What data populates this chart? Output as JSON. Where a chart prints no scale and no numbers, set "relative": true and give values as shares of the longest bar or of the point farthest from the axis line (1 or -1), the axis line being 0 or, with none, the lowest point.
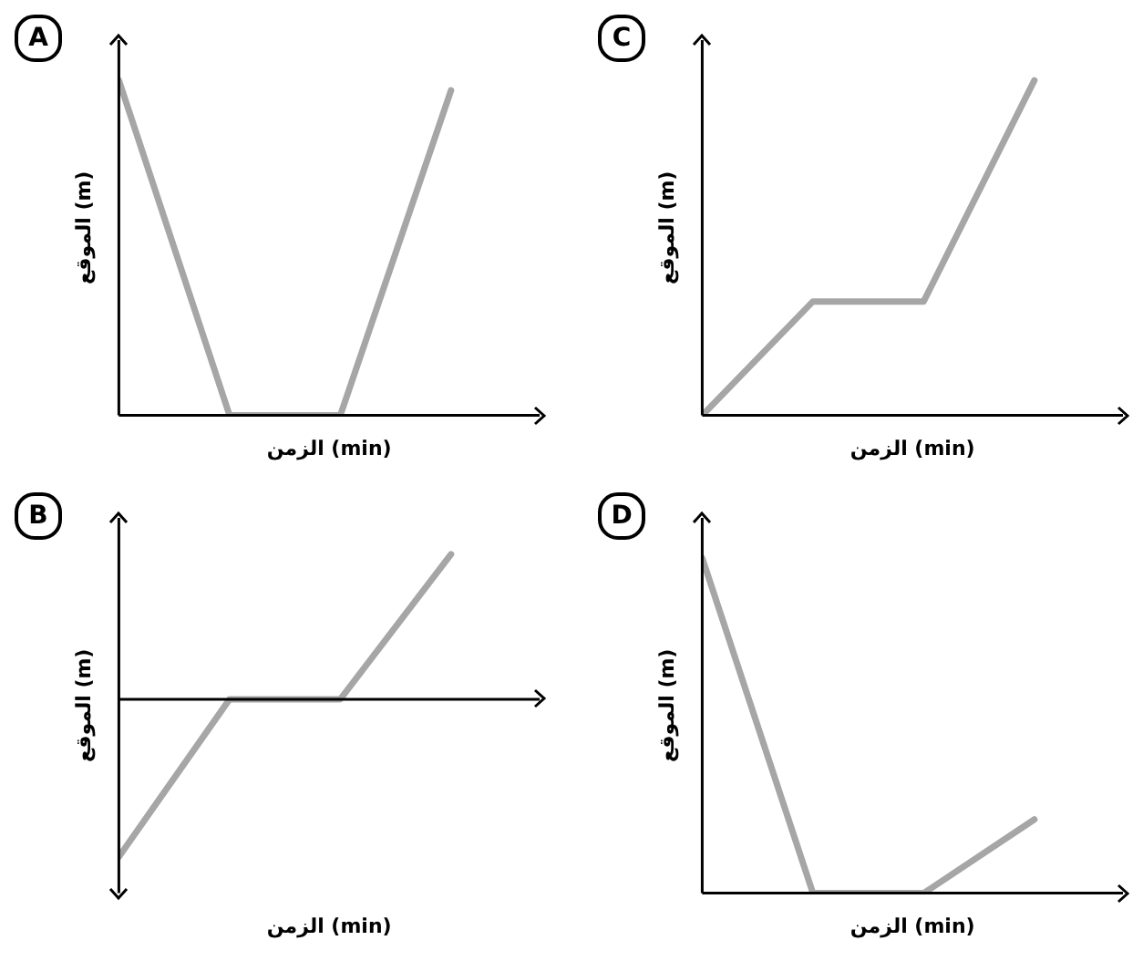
{
  "chart_data": [
    {
      "type": "line",
      "title": "A",
      "xlabel": "الزمن (min)",
      "ylabel": "الموقع (m)",
      "categories": [
        null,
        null,
        null,
        null
      ],
      "values": [
        1,
        0,
        0,
        0.97
      ],
      "color": "#a6a6a6",
      "relative": true,
      "marker": "none",
      "line_style": "solid"
    },
    {
      "type": "line",
      "title": "C",
      "xlabel": "الزمن (min)",
      "ylabel": "الموقع (m)",
      "categories": [
        null,
        null,
        null,
        null
      ],
      "values": [
        0,
        0.34,
        0.34,
        1
      ],
      "color": "#a6a6a6",
      "relative": true,
      "marker": "none",
      "line_style": "solid"
    },
    {
      "type": "line",
      "title": "B",
      "xlabel": "الزمن (min)",
      "ylabel": "الموقع (m)",
      "categories": [
        null,
        null,
        null,
        null
      ],
      "values": [
        -1,
        0,
        0,
        0.92
      ],
      "color": "#a6a6a6",
      "relative": true,
      "marker": "none",
      "line_style": "solid"
    },
    {
      "type": "line",
      "title": "D",
      "xlabel": "الزمن (min)",
      "ylabel": "الموقع (m)",
      "categories": [
        null,
        null,
        null,
        null
      ],
      "values": [
        1,
        0,
        0,
        0.22
      ],
      "color": "#a6a6a6",
      "relative": true,
      "marker": "none",
      "line_style": "solid"
    }
  ]
}
